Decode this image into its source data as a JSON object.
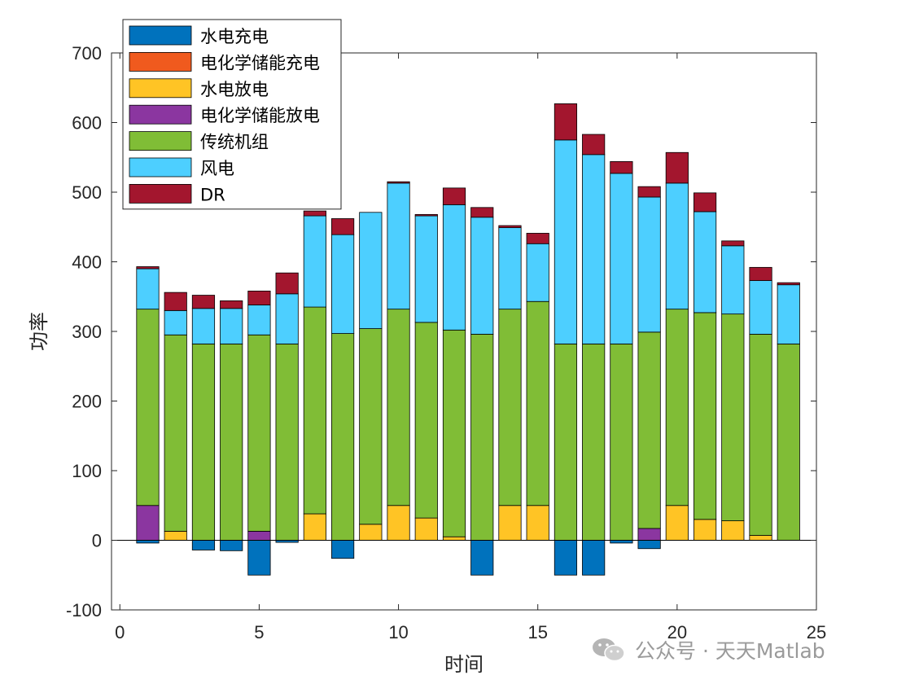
{
  "chart_data": {
    "type": "bar",
    "stacked": true,
    "xlabel": "时间",
    "ylabel": "功率",
    "xlim": [
      -0.3,
      25
    ],
    "ylim": [
      -100,
      700
    ],
    "xticks": [
      "0",
      "5",
      "10",
      "15",
      "20",
      "25"
    ],
    "yticks": [
      "-100",
      "0",
      "100",
      "200",
      "300",
      "400",
      "500",
      "600",
      "700"
    ],
    "legend_position": "top-left",
    "grid": false,
    "x": [
      1,
      2,
      3,
      4,
      5,
      6,
      7,
      8,
      9,
      10,
      11,
      12,
      13,
      14,
      15,
      16,
      17,
      18,
      19,
      20,
      21,
      22,
      23,
      24
    ],
    "series": [
      {
        "name": "水电充电",
        "color": "#0072BD",
        "values": [
          -4,
          0,
          -14,
          -15,
          -50,
          -3,
          0,
          -26,
          0,
          0,
          0,
          0,
          -50,
          0,
          0,
          -50,
          -50,
          -4,
          -12,
          0,
          0,
          0,
          0,
          0
        ]
      },
      {
        "name": "电化学储能充电",
        "color": "#F05A1E",
        "values": [
          0,
          0,
          0,
          0,
          0,
          0,
          0,
          0,
          0,
          0,
          0,
          0,
          0,
          0,
          0,
          0,
          0,
          0,
          0,
          0,
          0,
          0,
          0,
          0
        ]
      },
      {
        "name": "水电放电",
        "color": "#FFC425",
        "values": [
          0,
          13,
          0,
          0,
          0,
          0,
          38,
          0,
          23,
          50,
          32,
          5,
          0,
          50,
          50,
          0,
          0,
          0,
          0,
          50,
          30,
          28,
          7,
          0
        ]
      },
      {
        "name": "电化学储能放电",
        "color": "#8B36A0",
        "values": [
          50,
          0,
          0,
          0,
          13,
          0,
          0,
          0,
          0,
          0,
          0,
          0,
          0,
          0,
          0,
          0,
          0,
          0,
          17,
          0,
          0,
          0,
          0,
          0
        ]
      },
      {
        "name": "传统机组",
        "color": "#80BD36",
        "values": [
          282,
          282,
          282,
          282,
          282,
          282,
          297,
          297,
          281,
          282,
          281,
          297,
          296,
          282,
          293,
          282,
          282,
          282,
          282,
          282,
          297,
          297,
          289,
          282
        ]
      },
      {
        "name": "风电",
        "color": "#4DCFFF",
        "values": [
          58,
          35,
          51,
          51,
          43,
          72,
          131,
          142,
          167,
          181,
          153,
          180,
          168,
          117,
          83,
          293,
          272,
          245,
          194,
          181,
          145,
          98,
          77,
          85
        ]
      },
      {
        "name": "DR",
        "color": "#A3162E",
        "values": [
          3,
          26,
          19,
          11,
          20,
          30,
          7,
          23,
          0,
          2,
          2,
          24,
          14,
          3,
          15,
          52,
          29,
          17,
          15,
          44,
          27,
          7,
          19,
          3
        ]
      }
    ]
  },
  "watermark": {
    "text": "公众号 · 天天Matlab",
    "icon": "wechat-icon"
  }
}
